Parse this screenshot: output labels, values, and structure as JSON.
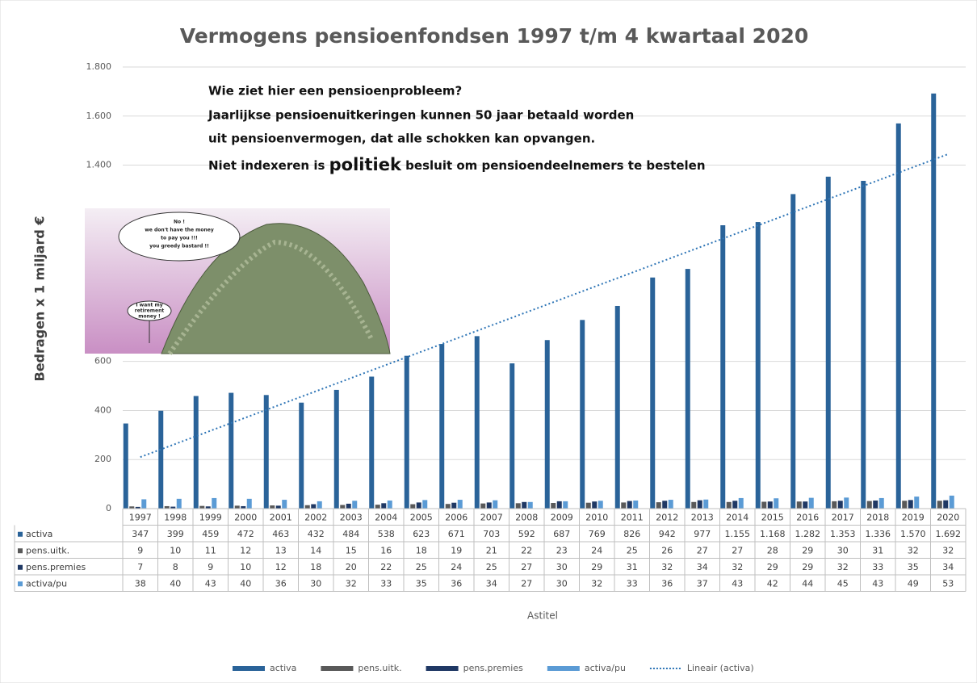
{
  "chart_data": {
    "type": "bar",
    "title": "Vermogens pensioenfondsen 1997 t/m 4 kwartaal 2020",
    "y_label": "Bedragen x 1 miljard €",
    "x_label": "Astitel",
    "categories": [
      "1997",
      "1998",
      "1999",
      "2000",
      "2001",
      "2002",
      "2003",
      "2004",
      "2005",
      "2006",
      "2007",
      "2008",
      "2009",
      "2010",
      "2011",
      "2012",
      "2013",
      "2014",
      "2015",
      "2016",
      "2017",
      "2018",
      "2019",
      "2020"
    ],
    "series": [
      {
        "name": "activa",
        "color": "#2a6399",
        "values": [
          347,
          399,
          459,
          472,
          463,
          432,
          484,
          538,
          623,
          671,
          703,
          592,
          687,
          769,
          826,
          942,
          977,
          1155,
          1168,
          1282,
          1353,
          1336,
          1570,
          1692
        ],
        "value_labels": [
          "347",
          "399",
          "459",
          "472",
          "463",
          "432",
          "484",
          "538",
          "623",
          "671",
          "703",
          "592",
          "687",
          "769",
          "826",
          "942",
          "977",
          "1.155",
          "1.168",
          "1.282",
          "1.353",
          "1.336",
          "1.570",
          "1.692"
        ]
      },
      {
        "name": "pens.uitk.",
        "color": "#595959",
        "values": [
          9,
          10,
          11,
          12,
          13,
          14,
          15,
          16,
          18,
          19,
          21,
          22,
          23,
          24,
          25,
          26,
          27,
          27,
          28,
          29,
          30,
          31,
          32,
          32
        ]
      },
      {
        "name": "pens.premies",
        "color": "#1f3864",
        "values": [
          7,
          8,
          9,
          10,
          12,
          18,
          20,
          22,
          25,
          24,
          25,
          27,
          30,
          29,
          31,
          32,
          34,
          32,
          29,
          29,
          32,
          33,
          35,
          34
        ]
      },
      {
        "name": "activa/pu",
        "color": "#5b9bd5",
        "values": [
          38,
          40,
          43,
          40,
          36,
          30,
          32,
          33,
          35,
          36,
          34,
          27,
          30,
          32,
          33,
          36,
          37,
          43,
          42,
          44,
          45,
          43,
          49,
          53
        ]
      }
    ],
    "trendline": {
      "name": "Lineair (activa)",
      "color": "#2e75b6",
      "start": 210,
      "end": 1445
    },
    "ylim": [
      0,
      1800
    ],
    "yticks": [
      0,
      200,
      400,
      600,
      {
        "value": 1400,
        "label": "1.400"
      },
      {
        "value": 1600,
        "label": "1.600"
      },
      {
        "value": 1800,
        "label": "1.800"
      }
    ],
    "grid": true,
    "annotation": [
      "Wie ziet hier een pensioenprobleem?",
      "Jaarlijkse pensioenuitkeringen kunnen 50 jaar betaald worden",
      "uit pensioenvermogen, dat alle schokken kan opvangen."
    ],
    "annotation_last": [
      "Niet indexeren is",
      "politiek",
      "besluit om pensioendeelnemers te bestelen"
    ],
    "image_texts": [
      "No !",
      "we don't have the money",
      "to pay you !!!",
      "you greedy bastard !!",
      "I want my",
      "retirement",
      "money !"
    ]
  }
}
